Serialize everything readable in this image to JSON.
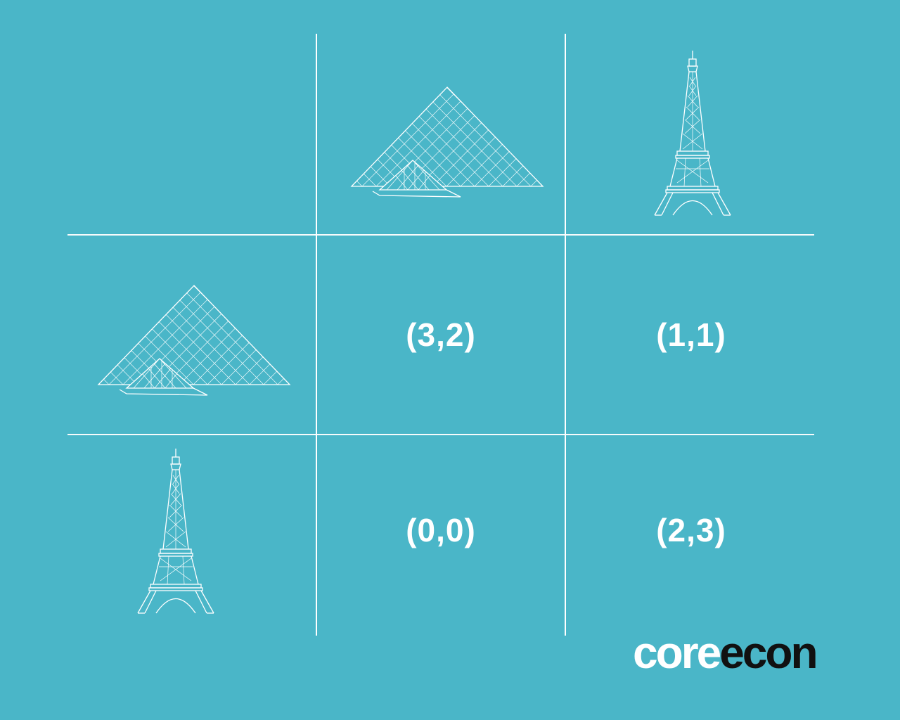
{
  "game": {
    "strategies": {
      "column": [
        "louvre-pyramid",
        "eiffel-tower"
      ],
      "row": [
        "louvre-pyramid",
        "eiffel-tower"
      ]
    },
    "payoffs": [
      [
        "(3,2)",
        "(1,1)"
      ],
      [
        "(0,0)",
        "(2,3)"
      ]
    ]
  },
  "logo": {
    "core": "core",
    "econ": "econ"
  },
  "colors": {
    "background": "#4ab6c8",
    "lines": "#ffffff",
    "logo_dark": "#111111"
  }
}
